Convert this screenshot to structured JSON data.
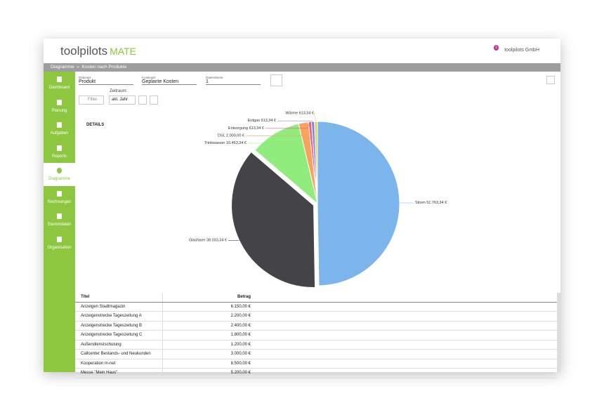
{
  "header": {
    "logo": "toolpilots",
    "logo_suffix": "MATE",
    "badge": "1",
    "user": "toolpilots GmbH"
  },
  "breadcrumb": [
    "Diagramme",
    "Kosten nach Produkte"
  ],
  "sidebar": [
    "Dashboard",
    "Planung",
    "Aufgaben",
    "Reports",
    "Diagramme",
    "Rechnungen",
    "Stammdaten",
    "Organisation"
  ],
  "filters": {
    "fields": [
      {
        "label": "Datenart",
        "value": "Produkt"
      },
      {
        "label": "Kostenart",
        "value": "Geplante Kosten"
      },
      {
        "label": "Datenebene",
        "value": "1"
      }
    ],
    "filter": "Filter",
    "period_label": "Zeitraum:",
    "period": "akt. Jahr",
    "details": "DETAILS"
  },
  "chart_data": {
    "type": "pie",
    "categories": [
      "Strom",
      "Glasfaser",
      "Trinkwasser",
      "DSL",
      "Entsorgung",
      "Erdgas",
      "Wärme"
    ],
    "values": [
      51763.34,
      38033.34,
      10463.34,
      2000,
      613.34,
      613.34,
      613.34
    ],
    "value_labels": [
      "51.763,34 €",
      "38.033,34 €",
      "10.463,34 €",
      "2.000,00 €",
      "613,34 €",
      "613,34 €",
      "613,34 €"
    ],
    "colors": [
      "#7cb5ec",
      "#434348",
      "#90ed7d",
      "#f7a35c",
      "#f15c80",
      "#8085e9",
      "#e4d354"
    ]
  },
  "table": {
    "columns": [
      "Titel",
      "Betrag"
    ],
    "rows": [
      [
        "Anzeigen Stadtmagazin",
        "6.150,00 €"
      ],
      [
        "Anzeigenstrecke Tageszeitung A",
        "2.200,00 €"
      ],
      [
        "Anzeigenstrecke Tageszeitung B",
        "2.400,00 €"
      ],
      [
        "Anzeigenstrecke Tageszeitung C",
        "1.800,00 €"
      ],
      [
        "Außendienstschulung",
        "1.200,00 €"
      ],
      [
        "Callcenter Bestands- und Neukunden",
        "3.000,00 €"
      ],
      [
        "Kooperation m-net",
        "8.500,00 €"
      ],
      [
        "Messe \"Mein Haus\"",
        "5.200,00 €"
      ]
    ]
  }
}
